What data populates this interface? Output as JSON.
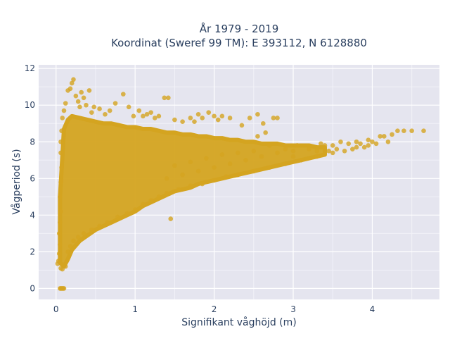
{
  "chart_data": {
    "type": "scatter",
    "title_line1": "År 1979 - 2019",
    "title_line2": "Koordinat (Sweref 99 TM): E 393112, N 6128880",
    "xlabel": "Signifikant våghöjd (m)",
    "ylabel": "Vågperiod (s)",
    "xlim": [
      -0.22,
      4.85
    ],
    "ylim": [
      -0.6,
      12.2
    ],
    "x_ticks": [
      0,
      1,
      2,
      3,
      4
    ],
    "y_ticks": [
      0,
      2,
      4,
      6,
      8,
      10,
      12
    ],
    "grid": true,
    "legend": "none",
    "marker_color": "#D4A420",
    "marker_opacity": 0.8,
    "plot_bg": "#E5E5EF",
    "points": [
      [
        0.05,
        0
      ],
      [
        0.06,
        0
      ],
      [
        0.07,
        0
      ],
      [
        0.08,
        0
      ],
      [
        0.09,
        0
      ],
      [
        0.1,
        0
      ],
      [
        0.02,
        1.35
      ],
      [
        0.06,
        1.1
      ],
      [
        0.08,
        1.05
      ],
      [
        0.12,
        1.2
      ],
      [
        0.03,
        1.5
      ],
      [
        0.04,
        1.9
      ],
      [
        0.05,
        2.4
      ],
      [
        0.04,
        3.0
      ],
      [
        0.05,
        3.6
      ],
      [
        0.06,
        4.2
      ],
      [
        0.05,
        5.0
      ],
      [
        0.06,
        5.8
      ],
      [
        0.07,
        6.6
      ],
      [
        0.06,
        7.4
      ],
      [
        0.06,
        8.0
      ],
      [
        0.07,
        8.6
      ],
      [
        0.08,
        9.3
      ],
      [
        0.1,
        9.7
      ],
      [
        0.12,
        10.1
      ],
      [
        0.15,
        10.8
      ],
      [
        0.18,
        10.9
      ],
      [
        0.2,
        11.2
      ],
      [
        0.22,
        11.4
      ],
      [
        0.25,
        10.5
      ],
      [
        0.28,
        10.2
      ],
      [
        0.3,
        9.9
      ],
      [
        0.32,
        10.7
      ],
      [
        0.35,
        10.4
      ],
      [
        0.38,
        10.0
      ],
      [
        0.42,
        10.8
      ],
      [
        0.45,
        9.6
      ],
      [
        0.48,
        9.9
      ],
      [
        0.55,
        9.8
      ],
      [
        0.62,
        9.5
      ],
      [
        0.68,
        9.7
      ],
      [
        0.75,
        10.1
      ],
      [
        0.85,
        10.6
      ],
      [
        0.92,
        9.9
      ],
      [
        0.98,
        9.4
      ],
      [
        1.05,
        9.7
      ],
      [
        1.1,
        9.4
      ],
      [
        1.15,
        9.5
      ],
      [
        1.2,
        9.6
      ],
      [
        1.25,
        9.3
      ],
      [
        1.3,
        9.4
      ],
      [
        1.37,
        10.4
      ],
      [
        1.42,
        10.4
      ],
      [
        1.5,
        9.2
      ],
      [
        1.6,
        9.1
      ],
      [
        1.7,
        9.3
      ],
      [
        1.75,
        9.1
      ],
      [
        1.8,
        9.5
      ],
      [
        1.85,
        9.3
      ],
      [
        1.93,
        9.6
      ],
      [
        2.0,
        9.4
      ],
      [
        2.05,
        9.2
      ],
      [
        2.1,
        9.4
      ],
      [
        2.2,
        9.3
      ],
      [
        2.35,
        8.9
      ],
      [
        2.45,
        9.3
      ],
      [
        2.55,
        9.5
      ],
      [
        2.62,
        9.0
      ],
      [
        2.75,
        9.3
      ],
      [
        2.8,
        9.3
      ],
      [
        2.55,
        8.3
      ],
      [
        2.65,
        8.5
      ],
      [
        0.15,
        2.0
      ],
      [
        0.18,
        2.3
      ],
      [
        0.22,
        2.6
      ],
      [
        0.28,
        2.8
      ],
      [
        0.35,
        3.0
      ],
      [
        0.45,
        3.2
      ],
      [
        0.55,
        3.4
      ],
      [
        0.65,
        3.6
      ],
      [
        0.78,
        3.9
      ],
      [
        0.9,
        4.1
      ],
      [
        1.0,
        4.3
      ],
      [
        1.1,
        4.6
      ],
      [
        1.2,
        4.8
      ],
      [
        1.3,
        5.0
      ],
      [
        1.45,
        3.8
      ],
      [
        1.4,
        5.2
      ],
      [
        1.55,
        5.4
      ],
      [
        1.7,
        5.6
      ],
      [
        1.85,
        5.7
      ],
      [
        2.0,
        5.9
      ],
      [
        2.15,
        6.1
      ],
      [
        2.3,
        6.2
      ],
      [
        2.5,
        6.4
      ],
      [
        2.7,
        6.6
      ],
      [
        2.9,
        6.8
      ],
      [
        3.1,
        7.0
      ],
      [
        3.3,
        7.2
      ],
      [
        3.5,
        7.4
      ],
      [
        3.65,
        7.5
      ],
      [
        3.8,
        7.7
      ],
      [
        3.95,
        7.8
      ],
      [
        4.05,
        7.9
      ],
      [
        4.1,
        8.3
      ],
      [
        4.2,
        8.0
      ],
      [
        4.25,
        8.4
      ],
      [
        4.32,
        8.6
      ],
      [
        4.4,
        8.6
      ],
      [
        4.5,
        8.6
      ],
      [
        4.65,
        8.6
      ],
      [
        3.2,
        7.6
      ],
      [
        3.35,
        7.9
      ],
      [
        3.5,
        7.8
      ],
      [
        3.6,
        8.0
      ],
      [
        3.7,
        7.9
      ],
      [
        3.8,
        8.0
      ],
      [
        3.9,
        7.7
      ],
      [
        3.95,
        8.1
      ],
      [
        4.0,
        8.0
      ],
      [
        4.15,
        8.3
      ],
      [
        3.75,
        7.6
      ],
      [
        3.45,
        7.5
      ],
      [
        3.55,
        7.6
      ],
      [
        3.85,
        7.9
      ],
      [
        3.3,
        7.5
      ],
      [
        3.4,
        7.8
      ],
      [
        3.0,
        7.2
      ],
      [
        3.0,
        7.5
      ],
      [
        3.05,
        7.8
      ],
      [
        2.9,
        7.6
      ],
      [
        2.8,
        7.4
      ],
      [
        2.7,
        7.8
      ],
      [
        2.6,
        7.2
      ],
      [
        2.5,
        7.5
      ],
      [
        2.4,
        7.0
      ],
      [
        2.3,
        7.4
      ],
      [
        2.2,
        6.8
      ],
      [
        2.1,
        7.3
      ],
      [
        2.0,
        6.6
      ],
      [
        1.9,
        7.1
      ],
      [
        1.8,
        6.4
      ],
      [
        1.7,
        6.9
      ],
      [
        1.6,
        6.2
      ],
      [
        1.5,
        6.7
      ],
      [
        1.4,
        6.0
      ]
    ],
    "mass_bands": [
      [
        0.05,
        1.4,
        5.0
      ],
      [
        0.1,
        1.2,
        8.7
      ],
      [
        0.15,
        1.6,
        9.2
      ],
      [
        0.2,
        2.1,
        9.4
      ],
      [
        0.3,
        2.6,
        9.3
      ],
      [
        0.4,
        2.9,
        9.2
      ],
      [
        0.5,
        3.2,
        9.1
      ],
      [
        0.6,
        3.4,
        9.0
      ],
      [
        0.7,
        3.6,
        9.0
      ],
      [
        0.8,
        3.8,
        8.9
      ],
      [
        0.9,
        4.0,
        8.8
      ],
      [
        1.0,
        4.2,
        8.8
      ],
      [
        1.1,
        4.5,
        8.7
      ],
      [
        1.2,
        4.7,
        8.7
      ],
      [
        1.3,
        4.9,
        8.6
      ],
      [
        1.4,
        5.1,
        8.5
      ],
      [
        1.5,
        5.3,
        8.5
      ],
      [
        1.6,
        5.4,
        8.4
      ],
      [
        1.7,
        5.5,
        8.4
      ],
      [
        1.8,
        5.7,
        8.3
      ],
      [
        1.9,
        5.8,
        8.3
      ],
      [
        2.0,
        5.9,
        8.2
      ],
      [
        2.1,
        6.0,
        8.2
      ],
      [
        2.2,
        6.1,
        8.1
      ],
      [
        2.3,
        6.2,
        8.1
      ],
      [
        2.4,
        6.3,
        8.0
      ],
      [
        2.5,
        6.4,
        8.0
      ],
      [
        2.6,
        6.5,
        7.9
      ],
      [
        2.7,
        6.6,
        7.9
      ],
      [
        2.8,
        6.7,
        7.9
      ],
      [
        2.9,
        6.8,
        7.8
      ],
      [
        3.0,
        6.9,
        7.8
      ],
      [
        3.1,
        7.0,
        7.8
      ],
      [
        3.2,
        7.1,
        7.8
      ],
      [
        3.3,
        7.2,
        7.7
      ],
      [
        3.4,
        7.3,
        7.7
      ]
    ]
  }
}
